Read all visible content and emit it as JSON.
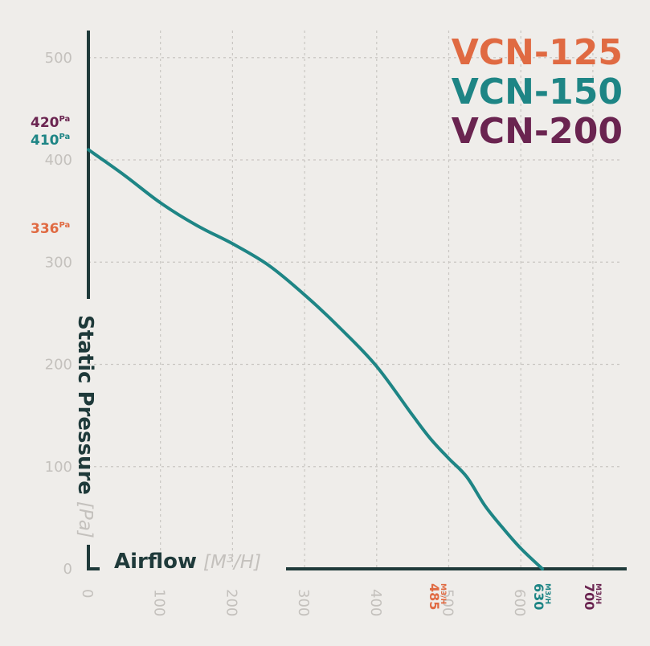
{
  "colors": {
    "background": "#efedea",
    "axis": "#1f3a3a",
    "grid": "#c9c6c2",
    "tick": "#c4c1bd",
    "vcn125": "#e06a42",
    "vcn150": "#1e8585",
    "vcn200": "#6a2450"
  },
  "chart_data": {
    "type": "line",
    "xlabel": "Airflow",
    "xunit": "[M³/H]",
    "ylabel": "Static Pressure",
    "yunit": "[Pa]",
    "xlim": [
      0,
      700
    ],
    "ylim": [
      0,
      500
    ],
    "xticks": [
      "0",
      "100",
      "200",
      "300",
      "400",
      "500",
      "600"
    ],
    "yticks": [
      "0",
      "100",
      "200",
      "300",
      "400",
      "500"
    ],
    "grid": true,
    "legend_position": "top-right",
    "legend": [
      {
        "label": "VCN-125",
        "color": "#e06a42"
      },
      {
        "label": "VCN-150",
        "color": "#1e8585"
      },
      {
        "label": "VCN-200",
        "color": "#6a2450"
      }
    ],
    "series": [
      {
        "name": "VCN-150",
        "color": "#1e8585",
        "x": [
          0,
          50,
          100,
          150,
          200,
          250,
          300,
          350,
          400,
          450,
          475,
          500,
          525,
          550,
          575,
          600,
          630
        ],
        "y": [
          410,
          385,
          358,
          336,
          318,
          297,
          268,
          235,
          198,
          150,
          127,
          108,
          90,
          62,
          40,
          20,
          0
        ]
      }
    ],
    "y_annotations": [
      {
        "value": "420",
        "unit": "Pa",
        "y": 420,
        "color": "#6a2450"
      },
      {
        "value": "410",
        "unit": "Pa",
        "y": 410,
        "color": "#1e8585"
      },
      {
        "value": "336",
        "unit": "Pa",
        "y": 336,
        "color": "#e06a42"
      }
    ],
    "x_annotations": [
      {
        "value": "485",
        "unit": "M3/H",
        "x": 485,
        "color": "#e06a42"
      },
      {
        "value": "630",
        "unit": "M3/H",
        "x": 630,
        "color": "#1e8585"
      },
      {
        "value": "700",
        "unit": "M3/H",
        "x": 700,
        "color": "#6a2450"
      }
    ]
  }
}
